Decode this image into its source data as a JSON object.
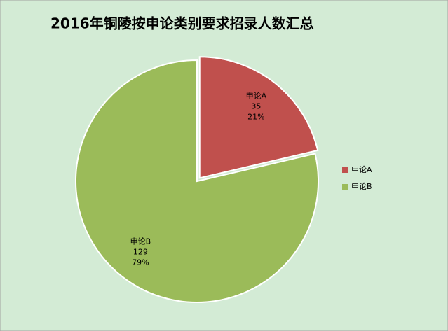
{
  "chart_data": {
    "type": "pie",
    "title": "2016年铜陵按申论类别要求招录人数汇总",
    "categories": [
      "申论A",
      "申论B"
    ],
    "values": [
      35,
      129
    ],
    "percent_labels": [
      "21%",
      "79%"
    ],
    "colors": [
      "#c0504d",
      "#9bbb59"
    ],
    "legend": "right"
  }
}
